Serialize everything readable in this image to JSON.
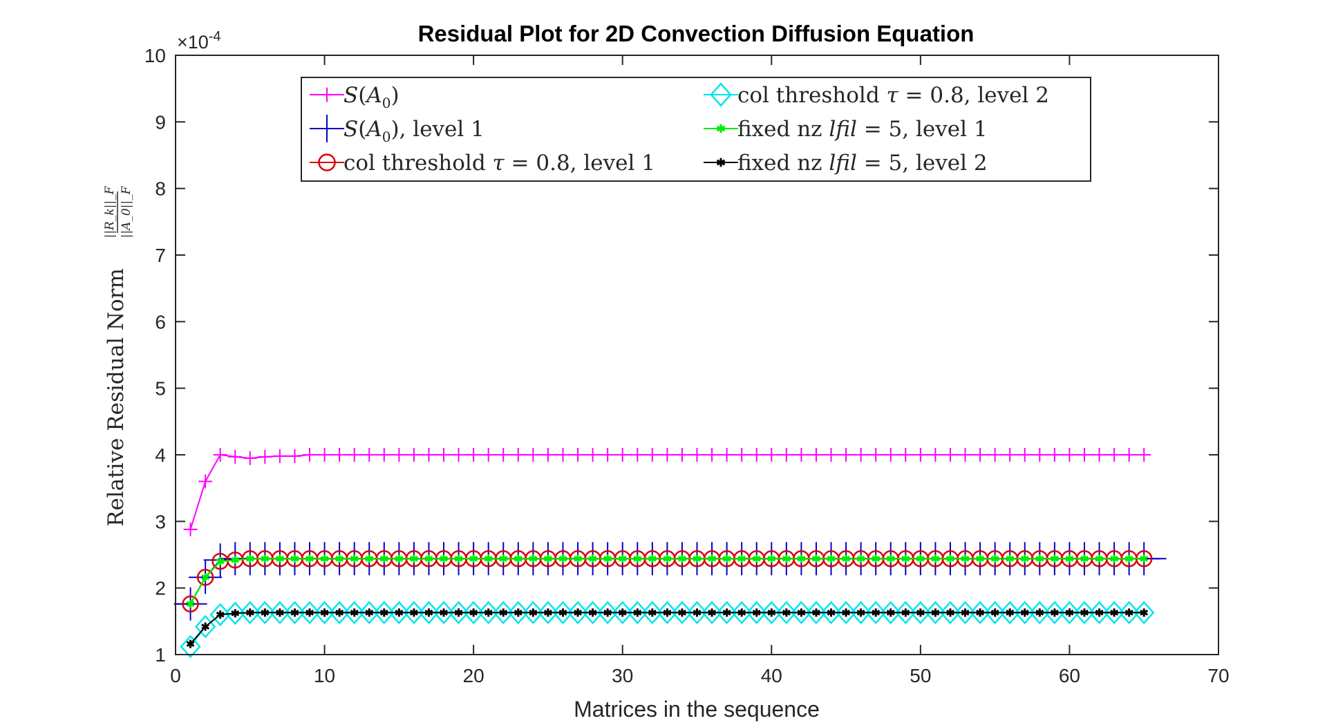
{
  "chart_data": {
    "type": "line",
    "title": "Residual Plot for 2D Convection Diffusion Equation",
    "xlabel": "Matrices in the sequence",
    "ylabel": "Relative Residual Norm",
    "ylabel_fraction_num": "||R_k||_F",
    "ylabel_fraction_den": "||A_0||_F",
    "y_exponent_label": "×10",
    "y_exponent_power": "-4",
    "xlim": [
      0,
      70
    ],
    "ylim": [
      1,
      10
    ],
    "xticks": [
      "0",
      "10",
      "20",
      "30",
      "40",
      "50",
      "60",
      "70"
    ],
    "yticks": [
      "1",
      "2",
      "3",
      "4",
      "5",
      "6",
      "7",
      "8",
      "9",
      "10"
    ],
    "legend_location": "top-center",
    "n_points": 65,
    "series": [
      {
        "name": "S(A_0)",
        "color": "#ff00ff",
        "marker": "plus",
        "values": [
          2.88,
          3.6,
          4.0,
          3.97,
          3.95,
          3.97,
          3.98,
          3.98,
          4.0
        ]
      },
      {
        "name": "S(A_0), level 1",
        "color": "#0000cc",
        "marker": "bigplus",
        "values": [
          1.76,
          2.16,
          2.42,
          2.44
        ]
      },
      {
        "name": "col threshold τ = 0.8, level 1",
        "color": "#dd0000",
        "marker": "circle",
        "values": [
          1.76,
          2.16,
          2.4,
          2.42,
          2.44
        ]
      },
      {
        "name": "col threshold τ = 0.8, level 2",
        "color": "#00e5ee",
        "marker": "diamond",
        "values": [
          1.12,
          1.42,
          1.6,
          1.62,
          1.63
        ]
      },
      {
        "name": "fixed nz lfil = 5, level 1",
        "color": "#00ee00",
        "marker": "star",
        "values": [
          1.76,
          2.16,
          2.4,
          2.42,
          2.44
        ]
      },
      {
        "name": "fixed nz lfil = 5, level 2",
        "color": "#000000",
        "marker": "hexstar",
        "values": [
          1.16,
          1.42,
          1.6,
          1.62,
          1.63
        ]
      }
    ],
    "legend": {
      "col1": [
        {
          "pre": "",
          "italic": "S",
          "post": "(",
          "italic2": "A",
          "sub": "0",
          "tail": ")"
        },
        {
          "pre": "",
          "italic": "S",
          "post": "(",
          "italic2": "A",
          "sub": "0",
          "tail": "), level 1"
        },
        {
          "pre": "col threshold ",
          "italic": "τ",
          "post": " = 0.8, level 1",
          "italic2": "",
          "sub": "",
          "tail": ""
        }
      ],
      "col2": [
        {
          "pre": "col threshold ",
          "italic": "τ",
          "post": " = 0.8, level 2",
          "italic2": "",
          "sub": "",
          "tail": ""
        },
        {
          "pre": "fixed nz ",
          "italic": "lfil",
          "post": " = 5, level 1",
          "italic2": "",
          "sub": "",
          "tail": ""
        },
        {
          "pre": "fixed nz ",
          "italic": "lfil",
          "post": " = 5, level 2",
          "italic2": "",
          "sub": "",
          "tail": ""
        }
      ]
    }
  }
}
